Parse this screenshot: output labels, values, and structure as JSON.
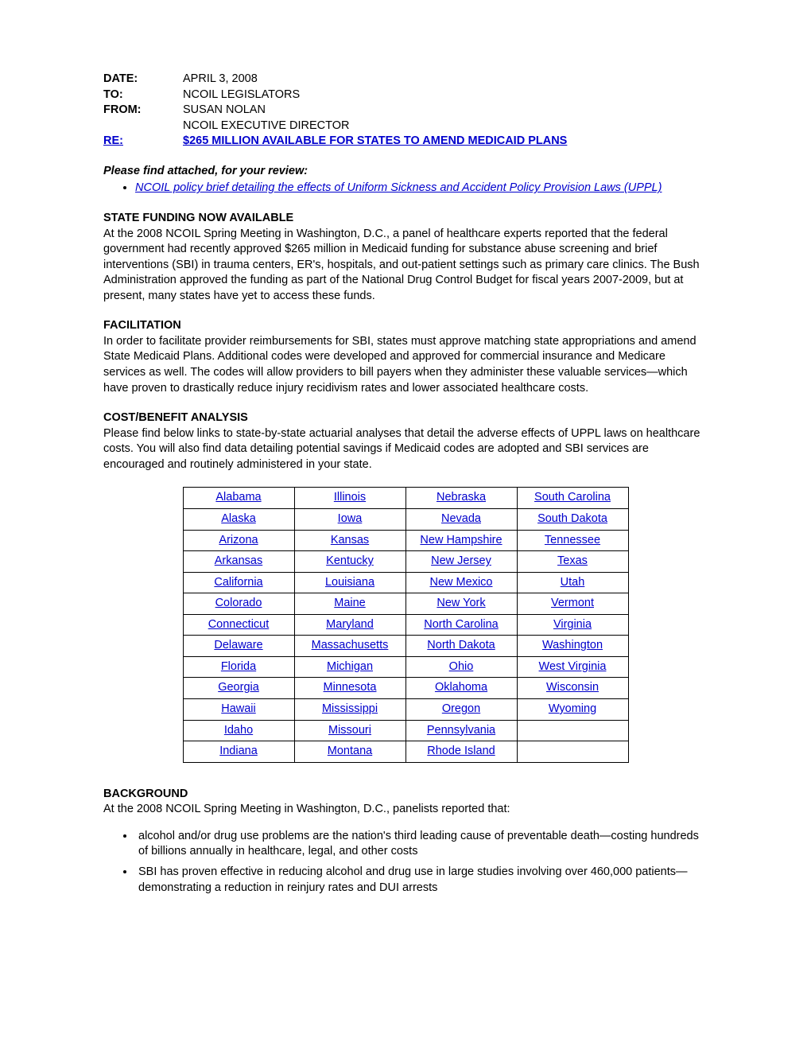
{
  "header": {
    "date_label": "DATE:",
    "date_value": "APRIL 3, 2008",
    "to_label": "TO:",
    "to_value": "NCOIL LEGISLATORS",
    "from_label": "FROM:",
    "from_value1": "SUSAN NOLAN",
    "from_value2": "NCOIL EXECUTIVE DIRECTOR",
    "re_label": "RE:",
    "re_value": "$265 MILLION AVAILABLE FOR STATES TO AMEND MEDICAID PLANS"
  },
  "attach": {
    "intro": "Please find attached, for your review:",
    "link": "NCOIL policy brief detailing the effects of Uniform Sickness and Accident Policy Provision Laws (UPPL)"
  },
  "funding": {
    "heading": "STATE FUNDING NOW AVAILABLE",
    "body": "At the 2008 NCOIL Spring Meeting in Washington, D.C., a panel of healthcare experts reported that the federal government had recently approved $265 million in Medicaid funding for substance abuse screening and brief interventions (SBI) in trauma centers, ER's, hospitals, and out-patient settings such as primary care clinics. The Bush Administration approved the funding as part of the National Drug Control Budget for fiscal years 2007-2009, but at present, many states have yet to access these funds."
  },
  "facilitation": {
    "heading": "FACILITATION",
    "body": "In order to facilitate provider reimbursements for SBI, states must approve matching state appropriations and amend State Medicaid Plans.  Additional codes were developed and approved for commercial insurance and Medicare services as well. The codes will allow providers to bill payers when they administer these valuable services—which have proven to drastically reduce injury recidivism rates and lower associated healthcare costs."
  },
  "cost": {
    "heading": "COST/BENEFIT ANALYSIS",
    "body": "Please find below links to state-by-state actuarial analyses that detail the adverse effects of UPPL laws on healthcare costs. You will also find data detailing potential savings if Medicaid codes are adopted and SBI services are encouraged and routinely administered in your state."
  },
  "states": {
    "rows": [
      [
        "Alabama",
        "Illinois",
        "Nebraska",
        "South Carolina"
      ],
      [
        "Alaska",
        "Iowa",
        "Nevada",
        "South Dakota"
      ],
      [
        "Arizona",
        "Kansas",
        "New Hampshire",
        "Tennessee"
      ],
      [
        "Arkansas",
        "Kentucky",
        "New Jersey",
        "Texas"
      ],
      [
        "California",
        "Louisiana",
        "New Mexico",
        "Utah"
      ],
      [
        "Colorado",
        "Maine",
        "New York",
        "Vermont"
      ],
      [
        "Connecticut",
        "Maryland",
        "North Carolina",
        "Virginia"
      ],
      [
        "Delaware",
        "Massachusetts",
        "North Dakota",
        "Washington"
      ],
      [
        "Florida",
        "Michigan",
        "Ohio",
        "West Virginia"
      ],
      [
        "Georgia",
        "Minnesota",
        "Oklahoma",
        "Wisconsin"
      ],
      [
        "Hawaii",
        "Mississippi",
        "Oregon",
        "Wyoming"
      ],
      [
        "Idaho",
        "Missouri",
        "Pennsylvania",
        ""
      ],
      [
        "Indiana",
        "Montana",
        "Rhode Island",
        ""
      ]
    ]
  },
  "background": {
    "heading": "BACKGROUND",
    "intro": "At the 2008 NCOIL Spring Meeting in Washington, D.C., panelists reported that:",
    "bullets": [
      "alcohol and/or drug use problems are the nation's third leading cause of preventable death—costing hundreds of billions annually in healthcare, legal, and other costs",
      "SBI has proven effective in reducing alcohol and drug use in large studies involving over 460,000 patients—demonstrating a reduction in reinjury rates and DUI arrests"
    ]
  }
}
